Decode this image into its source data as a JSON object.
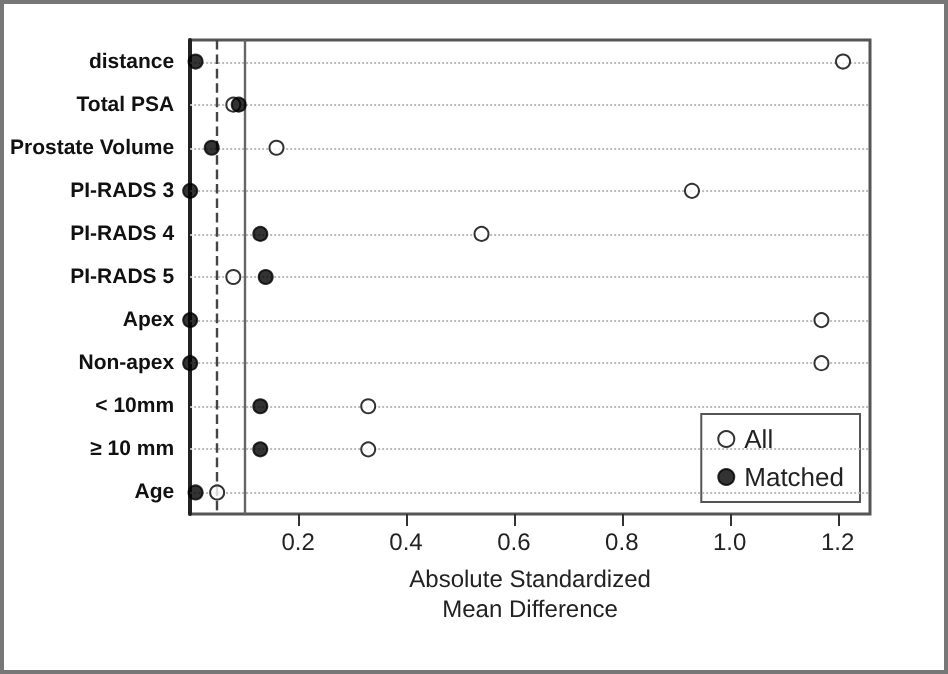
{
  "chart_data": {
    "type": "scatter",
    "orientation": "horizontal",
    "categories": [
      "distance",
      "Total PSA",
      "Prostate Volume",
      "PI-RADS 3",
      "PI-RADS 4",
      "PI-RADS 5",
      "Apex",
      "Non-apex",
      "< 10mm",
      "≥ 10 mm",
      "Age"
    ],
    "series": [
      {
        "name": "All",
        "color": "#ffffff",
        "values": [
          1.21,
          0.08,
          0.16,
          0.93,
          0.54,
          0.08,
          1.17,
          1.17,
          0.33,
          0.33,
          0.05
        ]
      },
      {
        "name": "Matched",
        "color": "#000000",
        "values": [
          0.01,
          0.09,
          0.04,
          0.0,
          0.13,
          0.14,
          0.0,
          0.0,
          0.13,
          0.13,
          0.01
        ]
      }
    ],
    "xlabel": "Absolute Standardized\nMean Difference",
    "xlim": [
      0,
      1.26
    ],
    "xticks": [
      0.2,
      0.4,
      0.6,
      0.8,
      {
        "value": 1.0,
        "label": "1.0"
      },
      1.2
    ],
    "ref_lines": [
      {
        "axis": "x",
        "value": 0.05,
        "line_style": "dashed",
        "color": "#444444"
      },
      {
        "axis": "x",
        "value": 0.1,
        "line_style": "solid",
        "color": "#666666"
      }
    ],
    "grid": "y",
    "legend": "bottom right",
    "marker": "circle"
  }
}
